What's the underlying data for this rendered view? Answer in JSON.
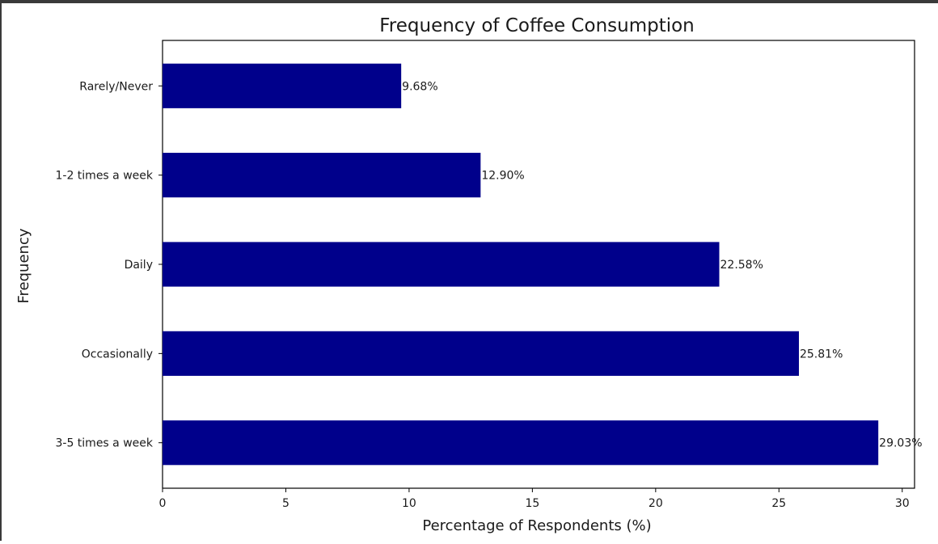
{
  "chart_data": {
    "type": "bar",
    "orientation": "horizontal",
    "title": "Frequency of Coffee Consumption",
    "xlabel": "Percentage of Respondents (%)",
    "ylabel": "Frequency",
    "categories": [
      "Rarely/Never",
      "1-2 times a week",
      "Daily",
      "Occasionally",
      "3-5 times a week"
    ],
    "values": [
      9.68,
      12.9,
      22.58,
      25.81,
      29.03
    ],
    "value_labels": [
      "9.68%",
      "12.90%",
      "22.58%",
      "25.81%",
      "29.03%"
    ],
    "xlim": [
      0,
      30.5
    ],
    "xticks": [
      0,
      5,
      10,
      15,
      20,
      25,
      30
    ],
    "grid": false,
    "bar_color": "#00008b"
  }
}
